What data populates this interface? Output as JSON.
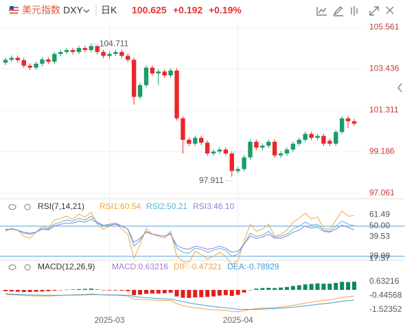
{
  "header": {
    "name": "美元指数",
    "symbol": "DXY",
    "period": "日K",
    "price": "100.625",
    "change": "+0.192",
    "change_pct": "+0.19%"
  },
  "chart_data": [
    {
      "type": "candlestick",
      "up_color": "#1a9c6b",
      "down_color": "#e8282b",
      "ylim": [
        96.78,
        105.84
      ],
      "yticks": [
        105.561,
        103.436,
        101.311,
        99.186,
        97.061
      ],
      "grid": true,
      "annotations": [
        "104.711",
        "97.911"
      ],
      "categories": [
        null,
        null,
        null,
        null,
        null,
        null,
        null,
        null,
        null,
        null,
        null,
        null,
        null,
        null,
        null,
        null,
        null,
        "2025-03",
        null,
        null,
        null,
        null,
        null,
        null,
        null,
        null,
        null,
        null,
        null,
        null,
        null,
        null,
        null,
        null,
        null,
        null,
        null,
        null,
        "2025-04",
        null,
        null,
        null,
        null,
        null,
        null,
        null,
        null,
        null,
        null,
        null,
        null,
        null,
        null,
        null,
        null,
        null,
        null,
        null
      ],
      "open": [
        103.75,
        103.9,
        104.0,
        103.88,
        103.6,
        103.5,
        103.7,
        103.92,
        103.8,
        104.2,
        104.3,
        104.4,
        104.3,
        104.5,
        104.4,
        104.6,
        104.3,
        104.1,
        104.2,
        104.3,
        104.1,
        103.9,
        102.0,
        102.6,
        103.5,
        103.2,
        103.3,
        103.1,
        103.35,
        100.9,
        99.8,
        99.6,
        99.9,
        99.65,
        99.1,
        99.2,
        99.3,
        99.1,
        98.2,
        98.3,
        98.9,
        99.7,
        99.4,
        99.5,
        99.7,
        99.0,
        99.1,
        99.3,
        99.6,
        99.8,
        100.1,
        99.9,
        100.0,
        99.75,
        99.6,
        100.2,
        100.9,
        100.75
      ],
      "high": [
        104.02,
        104.12,
        104.12,
        104.0,
        103.72,
        103.82,
        104.04,
        104.04,
        104.32,
        104.42,
        104.52,
        104.52,
        104.62,
        104.62,
        104.711,
        104.65,
        104.42,
        104.32,
        104.42,
        104.42,
        104.22,
        104.02,
        102.72,
        103.62,
        103.62,
        103.42,
        103.42,
        103.47,
        103.47,
        101.02,
        99.92,
        100.02,
        100.02,
        99.77,
        99.32,
        99.42,
        99.42,
        99.22,
        98.42,
        99.02,
        99.82,
        99.82,
        99.62,
        99.82,
        99.82,
        99.22,
        99.42,
        99.72,
        99.92,
        100.22,
        100.22,
        100.12,
        100.12,
        99.87,
        100.32,
        101.02,
        101.02,
        100.87
      ],
      "low": [
        103.63,
        103.78,
        103.76,
        103.48,
        103.38,
        103.38,
        103.58,
        103.68,
        103.68,
        104.08,
        104.18,
        104.18,
        104.18,
        104.28,
        104.28,
        104.18,
        103.98,
        103.98,
        104.08,
        103.98,
        103.78,
        101.6,
        101.88,
        102.48,
        103.08,
        102.6,
        102.98,
        102.98,
        100.78,
        99.1,
        99.48,
        99.48,
        99.53,
        98.98,
        98.98,
        99.08,
        98.98,
        97.911,
        98.08,
        98.18,
        98.78,
        99.28,
        99.28,
        99.38,
        98.88,
        98.88,
        98.98,
        99.18,
        99.48,
        99.68,
        99.78,
        99.78,
        99.48,
        99.48,
        99.48,
        100.08,
        100.4,
        100.51
      ],
      "close": [
        103.9,
        104.0,
        103.88,
        103.6,
        103.5,
        103.7,
        103.92,
        103.8,
        104.2,
        104.3,
        104.4,
        104.3,
        104.5,
        104.4,
        104.6,
        104.3,
        104.1,
        104.2,
        104.3,
        104.1,
        103.9,
        102.0,
        102.6,
        103.5,
        103.2,
        103.3,
        103.1,
        103.35,
        100.9,
        99.8,
        99.6,
        99.9,
        99.65,
        99.1,
        99.2,
        99.3,
        99.1,
        98.2,
        98.3,
        98.9,
        99.7,
        99.4,
        99.5,
        99.7,
        99.0,
        99.1,
        99.3,
        99.6,
        99.8,
        100.1,
        99.9,
        100.0,
        99.6,
        99.6,
        100.2,
        100.9,
        100.75,
        100.625
      ]
    },
    {
      "type": "line",
      "title": "RSI(7,14,21)",
      "ylim": [
        15.9,
        73.9
      ],
      "yticks": [
        61.49,
        {
          "value": 50,
          "label": "50.00"
        },
        39.53,
        17.57,
        {
          "value": 20,
          "label": "20.00"
        }
      ],
      "hlines": [
        50,
        20
      ],
      "hline_color": "#4aa3df",
      "series": [
        {
          "name": "RSI1:60.54",
          "color": "#f5a33b",
          "values": [
            45,
            48,
            46,
            40,
            38,
            44,
            50,
            48,
            56,
            58,
            60,
            57,
            62,
            59,
            64,
            52,
            47,
            50,
            53,
            47,
            42,
            18,
            32,
            48,
            42,
            40,
            38,
            45,
            20,
            15,
            14,
            25,
            22,
            17,
            20,
            24,
            20,
            12,
            16,
            35,
            52,
            45,
            47,
            52,
            40,
            42,
            46,
            54,
            58,
            63,
            57,
            59,
            48,
            47,
            56,
            65,
            60,
            60.54
          ]
        },
        {
          "name": "RSI2:50.21",
          "color": "#4db6d9",
          "values": [
            46,
            47,
            46,
            43,
            42,
            44,
            48,
            47,
            52,
            54,
            56,
            55,
            58,
            56,
            60,
            54,
            51,
            52,
            53,
            50,
            47,
            30,
            36,
            45,
            42,
            41,
            40,
            43,
            28,
            24,
            23,
            28,
            27,
            24,
            26,
            28,
            26,
            20,
            22,
            32,
            43,
            40,
            41,
            45,
            39,
            40,
            42,
            47,
            50,
            54,
            51,
            52,
            46,
            45,
            50,
            55,
            52,
            50.21
          ]
        },
        {
          "name": "RSI3:46.10",
          "color": "#8f7fd1",
          "values": [
            47,
            47,
            46,
            44,
            43,
            44,
            47,
            46,
            50,
            52,
            53,
            53,
            55,
            54,
            57,
            53,
            50,
            51,
            52,
            50,
            47,
            34,
            38,
            44,
            42,
            41,
            40,
            42,
            31,
            28,
            27,
            30,
            29,
            27,
            28,
            30,
            28,
            24,
            25,
            32,
            40,
            38,
            39,
            42,
            38,
            38,
            40,
            44,
            46,
            50,
            48,
            49,
            45,
            44,
            47,
            51,
            49,
            46.1
          ]
        }
      ]
    },
    {
      "type": "bar",
      "title": "MACD(12,26,9)",
      "name": "MACD:0.63216",
      "name_color": "#a77bd6",
      "up_color": "#0f8a5f",
      "down_color": "#e0201b",
      "ylim": [
        -1.84,
        2.16
      ],
      "yticks": [
        0.63216,
        -0.44568,
        -1.52352
      ],
      "values": [
        -0.1,
        -0.12,
        -0.14,
        -0.16,
        -0.16,
        -0.14,
        -0.12,
        -0.1,
        -0.06,
        -0.02,
        0.02,
        0.04,
        0.06,
        0.08,
        0.1,
        0.04,
        -0.02,
        -0.04,
        -0.04,
        -0.06,
        -0.1,
        -0.4,
        -0.36,
        -0.3,
        -0.28,
        -0.28,
        -0.26,
        -0.22,
        -0.5,
        -0.6,
        -0.62,
        -0.58,
        -0.56,
        -0.54,
        -0.5,
        -0.44,
        -0.4,
        -0.46,
        -0.38,
        -0.2,
        0.0,
        0.1,
        0.14,
        0.16,
        0.14,
        0.18,
        0.22,
        0.3,
        0.36,
        0.42,
        0.46,
        0.5,
        0.48,
        0.48,
        0.54,
        0.62,
        0.6,
        0.63216
      ],
      "series": [
        {
          "name": "DIF:-0.47321",
          "color": "#f5a33b",
          "values": [
            -0.35,
            -0.38,
            -0.41,
            -0.44,
            -0.46,
            -0.47,
            -0.47,
            -0.47,
            -0.45,
            -0.43,
            -0.4,
            -0.38,
            -0.36,
            -0.34,
            -0.31,
            -0.34,
            -0.38,
            -0.4,
            -0.41,
            -0.43,
            -0.47,
            -0.7,
            -0.74,
            -0.75,
            -0.77,
            -0.8,
            -0.82,
            -0.82,
            -1.05,
            -1.2,
            -1.31,
            -1.37,
            -1.43,
            -1.49,
            -1.53,
            -1.55,
            -1.57,
            -1.66,
            -1.67,
            -1.6,
            -1.5,
            -1.44,
            -1.4,
            -1.37,
            -1.36,
            -1.31,
            -1.26,
            -1.18,
            -1.1,
            -1.02,
            -0.94,
            -0.86,
            -0.82,
            -0.77,
            -0.68,
            -0.57,
            -0.53,
            -0.47321
          ]
        },
        {
          "name": "DEA:-0.78929",
          "color": "#3a9fd6",
          "values": [
            -0.3,
            -0.32,
            -0.34,
            -0.36,
            -0.38,
            -0.4,
            -0.41,
            -0.42,
            -0.42,
            -0.42,
            -0.41,
            -0.4,
            -0.39,
            -0.38,
            -0.36,
            -0.36,
            -0.37,
            -0.38,
            -0.39,
            -0.4,
            -0.42,
            -0.5,
            -0.56,
            -0.6,
            -0.63,
            -0.66,
            -0.69,
            -0.71,
            -0.8,
            -0.9,
            -1.0,
            -1.08,
            -1.15,
            -1.22,
            -1.28,
            -1.33,
            -1.37,
            -1.43,
            -1.48,
            -1.5,
            -1.5,
            -1.49,
            -1.47,
            -1.45,
            -1.43,
            -1.4,
            -1.37,
            -1.33,
            -1.28,
            -1.23,
            -1.17,
            -1.11,
            -1.06,
            -1.01,
            -0.95,
            -0.88,
            -0.83,
            -0.78929
          ]
        }
      ]
    }
  ]
}
